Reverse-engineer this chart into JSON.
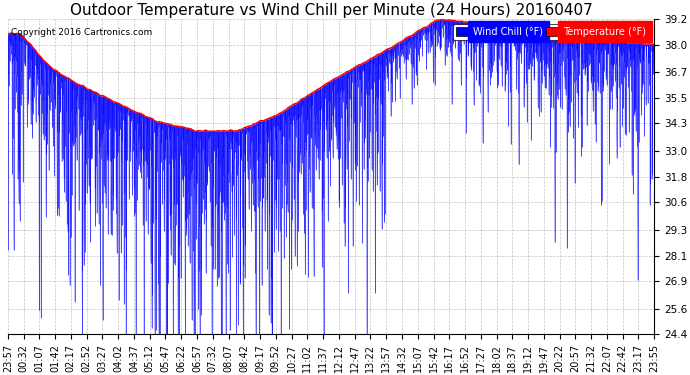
{
  "title": "Outdoor Temperature vs Wind Chill per Minute (24 Hours) 20160407",
  "copyright": "Copyright 2016 Cartronics.com",
  "ylabel_right_ticks": [
    24.4,
    25.6,
    26.9,
    28.1,
    29.3,
    30.6,
    31.8,
    33.0,
    34.3,
    35.5,
    36.7,
    38.0,
    39.2
  ],
  "ylim": [
    24.4,
    39.2
  ],
  "legend_wind_chill": "Wind Chill (°F)",
  "legend_temperature": "Temperature (°F)",
  "wind_chill_color": "#0000ff",
  "temperature_color": "#ff0000",
  "background_color": "#ffffff",
  "grid_color": "#aaaaaa",
  "title_fontsize": 11,
  "tick_fontsize": 7.5,
  "xlabel_ticks": [
    "23:57",
    "00:32",
    "01:07",
    "01:42",
    "02:17",
    "02:52",
    "03:27",
    "04:02",
    "04:37",
    "05:12",
    "05:47",
    "06:22",
    "06:57",
    "07:32",
    "08:07",
    "08:42",
    "09:17",
    "09:52",
    "10:27",
    "11:02",
    "11:37",
    "12:12",
    "12:47",
    "13:22",
    "13:57",
    "14:32",
    "15:07",
    "15:42",
    "16:17",
    "16:52",
    "17:27",
    "18:02",
    "18:37",
    "19:12",
    "19:47",
    "20:22",
    "20:57",
    "21:32",
    "22:07",
    "22:42",
    "23:17",
    "23:55"
  ]
}
